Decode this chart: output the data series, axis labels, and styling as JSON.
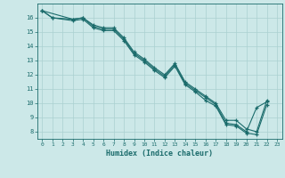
{
  "title": "",
  "xlabel": "Humidex (Indice chaleur)",
  "bg_color": "#cce8e8",
  "grid_color": "#aad0d0",
  "line_color": "#1a6b6b",
  "xlim": [
    -0.5,
    23.5
  ],
  "ylim": [
    7.5,
    17.0
  ],
  "yticks": [
    8,
    9,
    10,
    11,
    12,
    13,
    14,
    15,
    16
  ],
  "xticks": [
    0,
    1,
    2,
    3,
    4,
    5,
    6,
    7,
    8,
    9,
    10,
    11,
    12,
    13,
    14,
    15,
    16,
    17,
    18,
    19,
    20,
    21,
    22,
    23
  ],
  "line1_x": [
    0,
    1,
    3,
    4,
    5,
    6,
    7,
    8,
    9,
    10,
    11,
    12,
    13,
    14,
    15,
    16,
    17,
    18,
    19,
    20,
    21,
    22
  ],
  "line1_y": [
    16.5,
    16.0,
    15.9,
    16.0,
    15.5,
    15.3,
    15.3,
    14.6,
    13.6,
    13.1,
    12.5,
    12.0,
    12.8,
    11.5,
    11.0,
    10.5,
    10.0,
    8.8,
    8.8,
    8.2,
    8.0,
    10.2
  ],
  "line2_x": [
    0,
    3,
    4,
    5,
    6,
    7,
    8,
    9,
    10,
    11,
    12,
    13,
    14,
    15,
    16,
    17,
    18,
    19,
    20,
    21,
    22
  ],
  "line2_y": [
    16.5,
    15.9,
    16.0,
    15.4,
    15.2,
    15.2,
    14.5,
    13.5,
    13.0,
    12.4,
    11.9,
    12.7,
    11.4,
    10.9,
    10.4,
    9.9,
    8.6,
    8.5,
    8.0,
    9.7,
    10.1
  ],
  "line3_x": [
    0,
    1,
    3,
    4,
    5,
    6,
    7,
    8,
    9,
    10,
    11,
    12,
    13,
    14,
    15,
    16,
    17,
    18,
    19,
    20,
    21,
    22
  ],
  "line3_y": [
    16.5,
    16.0,
    15.8,
    15.9,
    15.3,
    15.1,
    15.1,
    14.4,
    13.4,
    12.9,
    12.3,
    11.8,
    12.6,
    11.3,
    10.8,
    10.2,
    9.8,
    8.5,
    8.4,
    7.9,
    7.8,
    9.9
  ]
}
